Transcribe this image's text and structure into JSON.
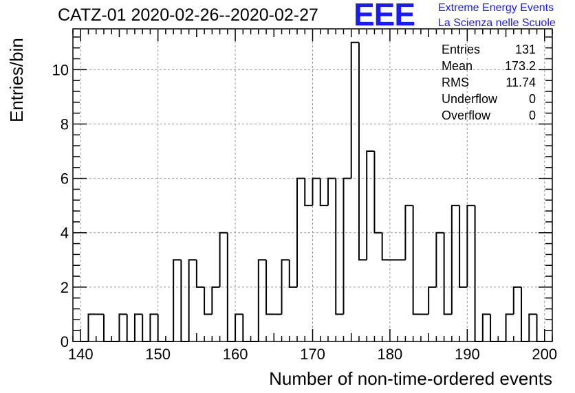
{
  "header": {
    "title": "CATZ-01 2020-02-26--2020-02-27"
  },
  "logo": {
    "mark": "EEE",
    "line1": "Extreme Energy Events",
    "line2": "La Scienza nelle Scuole",
    "color": "#1a1aff"
  },
  "stats": [
    {
      "label": "Entries",
      "value": "131"
    },
    {
      "label": "Mean",
      "value": "173.2"
    },
    {
      "label": "RMS",
      "value": "11.74"
    },
    {
      "label": "Underflow",
      "value": "0"
    },
    {
      "label": "Overflow",
      "value": "0"
    }
  ],
  "chart_data": {
    "type": "bar",
    "style": "step histogram",
    "title": "CATZ-01 2020-02-26--2020-02-27",
    "xlabel": "Number of non-time-ordered events",
    "ylabel": "Entries/bin",
    "xlim": [
      139,
      201
    ],
    "ylim": [
      0,
      11.5
    ],
    "bin_width": 1,
    "xticks": [
      140,
      150,
      160,
      170,
      180,
      190,
      200
    ],
    "yticks": [
      0,
      2,
      4,
      6,
      8,
      10
    ],
    "grid": true,
    "bins": [
      {
        "x": 140,
        "count": 0
      },
      {
        "x": 141,
        "count": 1
      },
      {
        "x": 142,
        "count": 1
      },
      {
        "x": 143,
        "count": 0
      },
      {
        "x": 144,
        "count": 0
      },
      {
        "x": 145,
        "count": 1
      },
      {
        "x": 146,
        "count": 0
      },
      {
        "x": 147,
        "count": 1
      },
      {
        "x": 148,
        "count": 0
      },
      {
        "x": 149,
        "count": 1
      },
      {
        "x": 150,
        "count": 0
      },
      {
        "x": 151,
        "count": 0
      },
      {
        "x": 152,
        "count": 3
      },
      {
        "x": 153,
        "count": 0
      },
      {
        "x": 154,
        "count": 3
      },
      {
        "x": 155,
        "count": 2
      },
      {
        "x": 156,
        "count": 1
      },
      {
        "x": 157,
        "count": 2
      },
      {
        "x": 158,
        "count": 4
      },
      {
        "x": 159,
        "count": 0
      },
      {
        "x": 160,
        "count": 1
      },
      {
        "x": 161,
        "count": 0
      },
      {
        "x": 162,
        "count": 0
      },
      {
        "x": 163,
        "count": 3
      },
      {
        "x": 164,
        "count": 1
      },
      {
        "x": 165,
        "count": 1
      },
      {
        "x": 166,
        "count": 3
      },
      {
        "x": 167,
        "count": 2
      },
      {
        "x": 168,
        "count": 6
      },
      {
        "x": 169,
        "count": 5
      },
      {
        "x": 170,
        "count": 6
      },
      {
        "x": 171,
        "count": 5
      },
      {
        "x": 172,
        "count": 6
      },
      {
        "x": 173,
        "count": 1
      },
      {
        "x": 174,
        "count": 6
      },
      {
        "x": 175,
        "count": 11
      },
      {
        "x": 176,
        "count": 3
      },
      {
        "x": 177,
        "count": 7
      },
      {
        "x": 178,
        "count": 4
      },
      {
        "x": 179,
        "count": 3
      },
      {
        "x": 180,
        "count": 3
      },
      {
        "x": 181,
        "count": 3
      },
      {
        "x": 182,
        "count": 5
      },
      {
        "x": 183,
        "count": 1
      },
      {
        "x": 184,
        "count": 1
      },
      {
        "x": 185,
        "count": 2
      },
      {
        "x": 186,
        "count": 4
      },
      {
        "x": 187,
        "count": 1
      },
      {
        "x": 188,
        "count": 5
      },
      {
        "x": 189,
        "count": 2
      },
      {
        "x": 190,
        "count": 5
      },
      {
        "x": 191,
        "count": 0
      },
      {
        "x": 192,
        "count": 1
      },
      {
        "x": 193,
        "count": 0
      },
      {
        "x": 194,
        "count": 0
      },
      {
        "x": 195,
        "count": 1
      },
      {
        "x": 196,
        "count": 2
      },
      {
        "x": 197,
        "count": 0
      },
      {
        "x": 198,
        "count": 1
      },
      {
        "x": 199,
        "count": 0
      }
    ]
  }
}
